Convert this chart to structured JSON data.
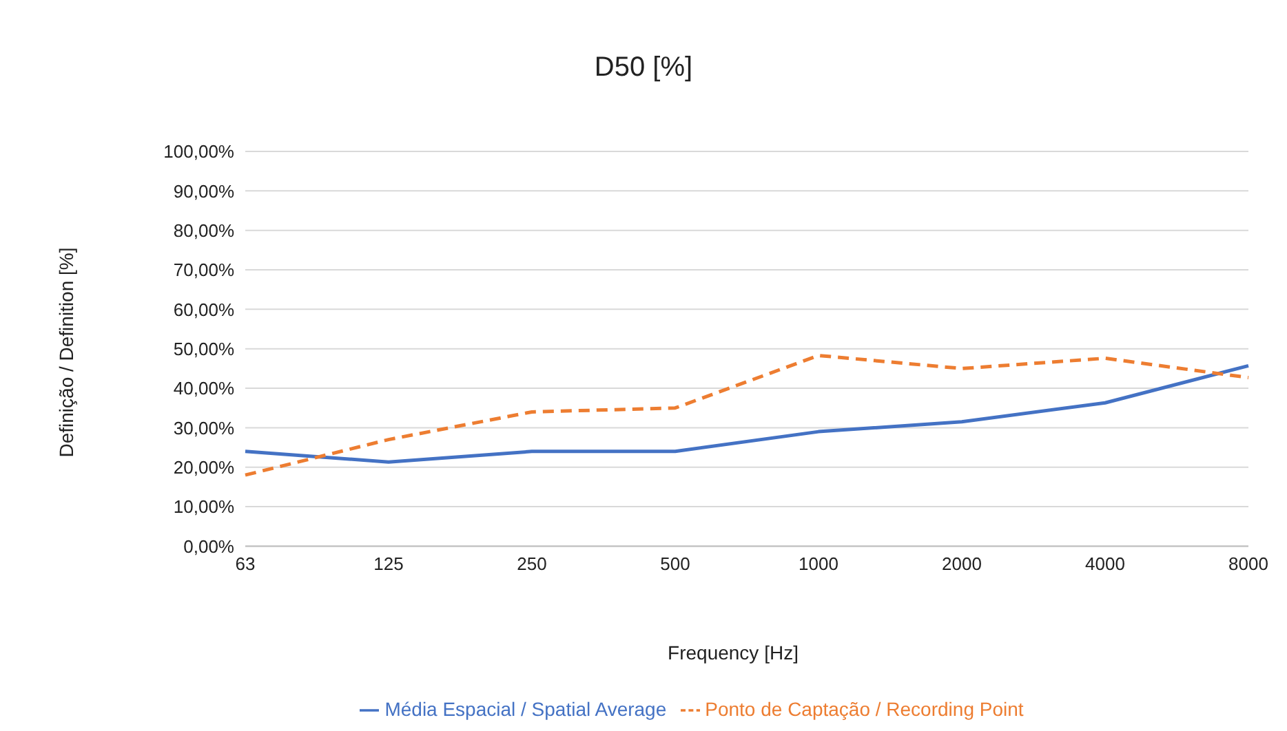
{
  "chart_data": {
    "type": "line",
    "title": "D50 [%]",
    "xlabel": "Frequency [Hz]",
    "ylabel": "Definição / Definition [%]",
    "categories": [
      "63",
      "125",
      "250",
      "500",
      "1000",
      "2000",
      "4000",
      "8000"
    ],
    "series": [
      {
        "name": "Média Espacial / Spatial Average",
        "color": "#4472c4",
        "line_style": "solid",
        "values": [
          24,
          21.3,
          24,
          24,
          29,
          31.5,
          36.3,
          45.7
        ]
      },
      {
        "name": "Ponto de Captação / Recording Point",
        "color": "#ed7d31",
        "line_style": "dashed",
        "values": [
          18,
          27,
          34,
          35,
          48.3,
          45,
          47.6,
          42.7
        ]
      }
    ],
    "ylim": [
      0,
      100
    ],
    "yticks": [
      {
        "value": 0,
        "label": "0,00%"
      },
      {
        "value": 10,
        "label": "10,00%"
      },
      {
        "value": 20,
        "label": "20,00%"
      },
      {
        "value": 30,
        "label": "30,00%"
      },
      {
        "value": 40,
        "label": "40,00%"
      },
      {
        "value": 50,
        "label": "50,00%"
      },
      {
        "value": 60,
        "label": "60,00%"
      },
      {
        "value": 70,
        "label": "70,00%"
      },
      {
        "value": 80,
        "label": "80,00%"
      },
      {
        "value": 90,
        "label": "90,00%"
      },
      {
        "value": 100,
        "label": "100,00%"
      }
    ],
    "grid": "y",
    "legend": "bottom",
    "marker": "none"
  }
}
